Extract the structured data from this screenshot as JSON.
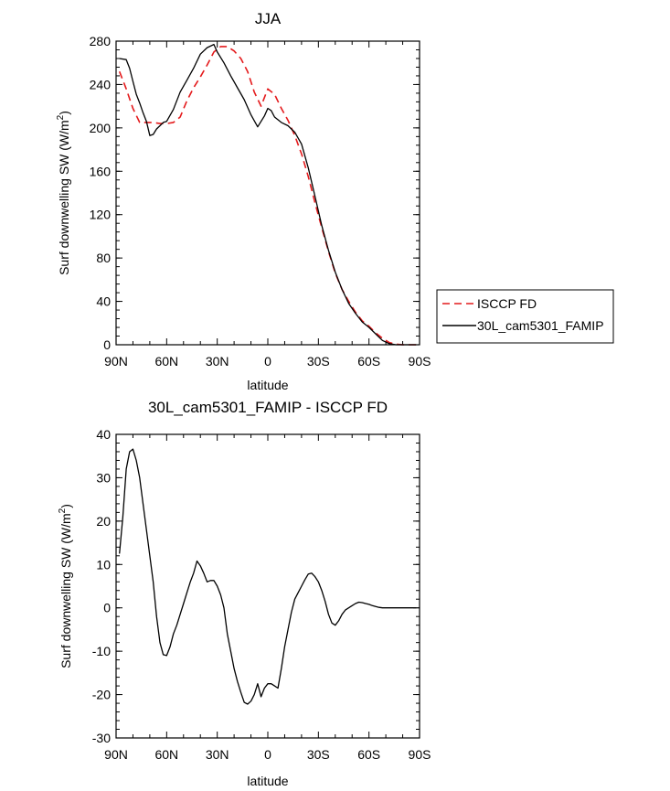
{
  "chart_data": [
    {
      "type": "line",
      "title": "JJA",
      "xlabel": "latitude",
      "ylabel": "Surf downwelling SW (W/m",
      "ylabel_sup": "2",
      "ylabel_end": ")",
      "xlim": [
        90,
        -90
      ],
      "ylim": [
        0,
        280
      ],
      "xticks": [
        90,
        60,
        30,
        0,
        -30,
        -60,
        -90
      ],
      "xtick_labels": [
        "90N",
        "60N",
        "30N",
        "0",
        "30S",
        "60S",
        "90S"
      ],
      "yticks": [
        0,
        40,
        80,
        120,
        160,
        200,
        240,
        280
      ],
      "ytick_labels": [
        "0",
        "40",
        "80",
        "120",
        "160",
        "200",
        "240",
        "280"
      ],
      "legend": [
        "ISCCP FD",
        "30L_cam5301_FAMIP"
      ],
      "series": [
        {
          "name": "ISCCP FD",
          "color": "#e41a1c",
          "dash": true,
          "x": [
            88,
            84,
            80,
            76,
            72,
            68,
            64,
            60,
            56,
            52,
            48,
            44,
            40,
            36,
            32,
            28,
            24,
            20,
            16,
            12,
            8,
            4,
            0,
            -4,
            -8,
            -12,
            -16,
            -20,
            -24,
            -28,
            -32,
            -36,
            -40,
            -44,
            -48,
            -52,
            -56,
            -60,
            -64,
            -68,
            -72,
            -76,
            -80,
            -84,
            -88
          ],
          "values": [
            252,
            236,
            218,
            205,
            205,
            205,
            204,
            204,
            205,
            210,
            225,
            237,
            247,
            258,
            270,
            275,
            275,
            271,
            264,
            252,
            233,
            220,
            236,
            231,
            218,
            207,
            193,
            176,
            155,
            131,
            108,
            86,
            66,
            51,
            40,
            30,
            22,
            17,
            11,
            6,
            2,
            0.5,
            0,
            0,
            0
          ]
        },
        {
          "name": "30L_cam5301_FAMIP",
          "color": "#000000",
          "dash": false,
          "x": [
            88,
            84,
            82,
            80,
            78,
            76,
            74,
            72,
            70,
            68,
            66,
            64,
            62,
            60,
            56,
            52,
            48,
            44,
            40,
            36,
            32,
            30,
            26,
            22,
            18,
            14,
            10,
            6,
            2,
            0,
            -2,
            -4,
            -8,
            -12,
            -16,
            -20,
            -24,
            -28,
            -32,
            -36,
            -40,
            -44,
            -48,
            -52,
            -56,
            -60,
            -64,
            -68,
            -72,
            -76,
            -80,
            -84,
            -88
          ],
          "values": [
            264,
            263,
            255,
            243,
            231,
            223,
            214,
            206,
            193,
            194,
            199,
            202,
            205,
            206,
            217,
            233,
            244,
            255,
            268,
            274,
            277,
            270,
            260,
            248,
            237,
            226,
            212,
            201,
            211,
            218,
            216,
            210,
            205,
            202,
            196,
            185,
            163,
            137,
            110,
            87,
            67,
            51,
            38,
            29,
            21,
            16,
            10,
            4,
            1,
            0,
            0,
            0,
            0
          ]
        }
      ]
    },
    {
      "type": "line",
      "title": "30L_cam5301_FAMIP - ISCCP FD",
      "xlabel": "latitude",
      "ylabel": "Surf downwelling SW (W/m",
      "ylabel_sup": "2",
      "ylabel_end": ")",
      "xlim": [
        90,
        -90
      ],
      "ylim": [
        -30,
        40
      ],
      "xticks": [
        90,
        60,
        30,
        0,
        -30,
        -60,
        -90
      ],
      "xtick_labels": [
        "90N",
        "60N",
        "30N",
        "0",
        "30S",
        "60S",
        "90S"
      ],
      "yticks": [
        -30,
        -20,
        -10,
        0,
        10,
        20,
        30,
        40
      ],
      "ytick_labels": [
        "-30",
        "-20",
        "-10",
        "0",
        "10",
        "20",
        "30",
        "40"
      ],
      "series": [
        {
          "name": "30L_cam5301_FAMIP - ISCCP FD",
          "color": "#000000",
          "dash": false,
          "x": [
            88,
            86,
            84,
            82,
            80,
            78,
            76,
            74,
            72,
            70,
            68,
            66,
            64,
            62,
            60,
            58,
            56,
            54,
            52,
            50,
            48,
            46,
            44,
            42,
            40,
            38,
            36,
            34,
            32,
            30,
            28,
            26,
            24,
            22,
            20,
            18,
            16,
            14,
            12,
            10,
            8,
            6,
            4,
            2,
            0,
            -2,
            -4,
            -6,
            -8,
            -10,
            -12,
            -14,
            -16,
            -18,
            -20,
            -22,
            -24,
            -26,
            -28,
            -30,
            -32,
            -34,
            -36,
            -38,
            -40,
            -42,
            -44,
            -46,
            -48,
            -50,
            -52,
            -54,
            -56,
            -58,
            -60,
            -62,
            -64,
            -66,
            -68,
            -70,
            -72,
            -74,
            -76,
            -78,
            -80,
            -82,
            -84,
            -86,
            -88
          ],
          "values": [
            12.5,
            21,
            32,
            36,
            36.6,
            34,
            30,
            24,
            18,
            12,
            6,
            -2,
            -8,
            -10.8,
            -11,
            -9,
            -6,
            -4,
            -1.5,
            1,
            3.5,
            6,
            8,
            10.8,
            9.7,
            8,
            6,
            6.3,
            6.3,
            5,
            3,
            0,
            -6,
            -10,
            -14,
            -17,
            -19.5,
            -21.8,
            -22.2,
            -21.5,
            -20,
            -17.5,
            -20.5,
            -18.5,
            -17.5,
            -17.5,
            -18,
            -18.5,
            -14,
            -9,
            -5,
            -1,
            2,
            3.5,
            5,
            6.5,
            7.8,
            8,
            7.2,
            6,
            4,
            1.5,
            -1.5,
            -3.5,
            -4,
            -3,
            -1.5,
            -0.5,
            0,
            0.5,
            1,
            1.3,
            1.2,
            1,
            0.8,
            0.5,
            0.3,
            0.1,
            0,
            0,
            0,
            0,
            0,
            0,
            0,
            0,
            0,
            0,
            0
          ]
        }
      ]
    }
  ]
}
